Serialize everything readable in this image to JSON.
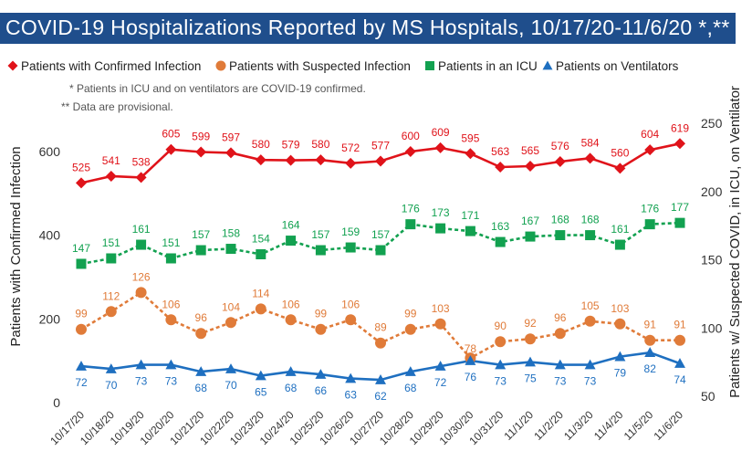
{
  "header": {
    "title": "COVID-19 Hospitalizations Reported by MS Hospitals, 10/17/20-11/6/20 *,**"
  },
  "legend": [
    {
      "label": "Patients with Confirmed Infection",
      "color": "#e0131a",
      "marker": "diamond"
    },
    {
      "label": "Patients with Suspected Infection",
      "color": "#e07b39",
      "marker": "circle"
    },
    {
      "label": "Patients in an ICU",
      "color": "#12a150",
      "marker": "square"
    },
    {
      "label": "Patients on Ventilators",
      "color": "#1e6fc0",
      "marker": "triangle"
    }
  ],
  "notes": [
    "* Patients in ICU and on ventilators are COVID-19 confirmed.",
    "** Data are provisional."
  ],
  "colors": {
    "title_bg": "#1f4e8c",
    "confirmed": "#e0131a",
    "suspected": "#e07b39",
    "icu": "#12a150",
    "ventilators": "#1e6fc0"
  },
  "chart_data": {
    "type": "line",
    "title": "COVID-19 Hospitalizations Reported by MS Hospitals, 10/17/20-11/6/20 *,**",
    "x": [
      "10/17/20",
      "10/18/20",
      "10/19/20",
      "10/20/20",
      "10/21/20",
      "10/22/20",
      "10/23/20",
      "10/24/20",
      "10/25/20",
      "10/26/20",
      "10/27/20",
      "10/28/20",
      "10/29/20",
      "10/30/20",
      "10/31/20",
      "11/1/20",
      "11/2/20",
      "11/3/20",
      "11/4/20",
      "11/5/20",
      "11/6/20"
    ],
    "ylabel_left": "Patients with Confirmed Infection",
    "ylabel_right": "Patients w/ Suspected COVID, in ICU, on Ventilator",
    "ylim_left": [
      0,
      680
    ],
    "ylim_right": [
      50,
      258
    ],
    "yticks_left": [
      0,
      200,
      400,
      600
    ],
    "yticks_right": [
      50,
      100,
      150,
      200,
      250
    ],
    "grid": false,
    "legend_position": "top",
    "series": [
      {
        "name": "Patients with Confirmed Infection",
        "axis": "left",
        "style": "solid",
        "values": [
          525,
          541,
          538,
          605,
          599,
          597,
          580,
          579,
          580,
          572,
          577,
          600,
          609,
          595,
          563,
          565,
          576,
          584,
          560,
          604,
          619
        ]
      },
      {
        "name": "Patients with Suspected Infection",
        "axis": "right",
        "style": "dashed",
        "values": [
          99,
          112,
          126,
          106,
          96,
          104,
          114,
          106,
          99,
          106,
          89,
          99,
          103,
          78,
          90,
          92,
          96,
          105,
          103,
          91,
          91
        ]
      },
      {
        "name": "Patients in an ICU",
        "axis": "right",
        "style": "dashed",
        "values": [
          147,
          151,
          161,
          151,
          157,
          158,
          154,
          164,
          157,
          159,
          157,
          176,
          173,
          171,
          163,
          167,
          168,
          168,
          161,
          176,
          177
        ]
      },
      {
        "name": "Patients on Ventilators",
        "axis": "right",
        "style": "solid",
        "values": [
          72,
          70,
          73,
          73,
          68,
          70,
          65,
          68,
          66,
          63,
          62,
          68,
          72,
          76,
          73,
          75,
          73,
          73,
          79,
          82,
          74
        ]
      }
    ]
  }
}
